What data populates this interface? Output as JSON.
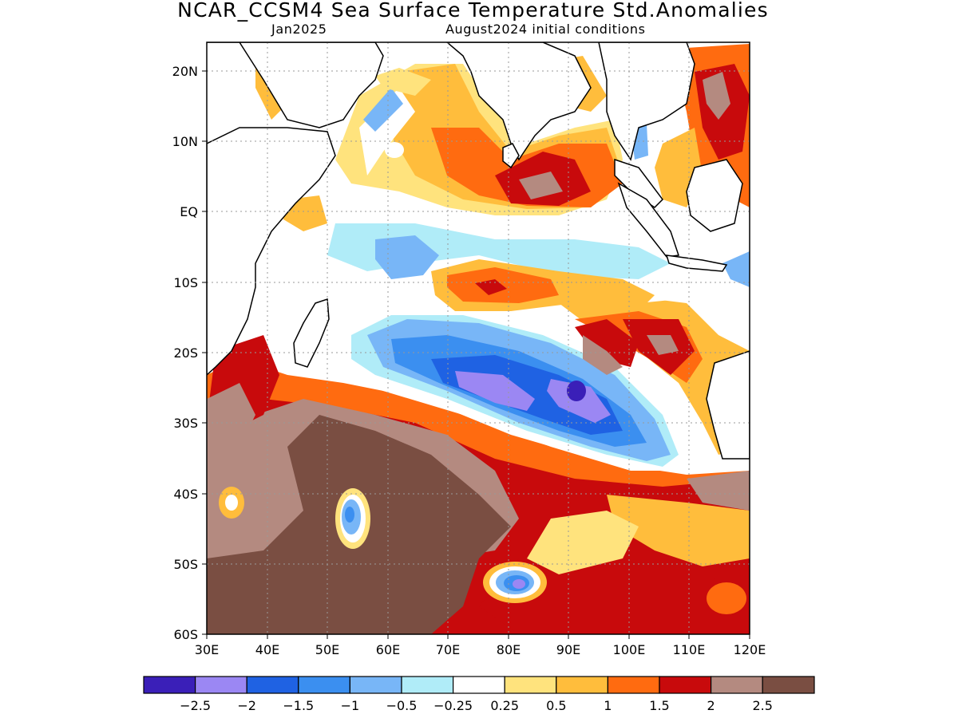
{
  "title": "NCAR_CCSM4 Sea Surface Temperature Std.Anomalies",
  "subtitle_left": "Jan2025",
  "subtitle_right": "August2024 initial conditions",
  "map": {
    "lat_labels": [
      "20N",
      "10N",
      "EQ",
      "10S",
      "20S",
      "30S",
      "40S",
      "50S",
      "60S"
    ],
    "lon_labels": [
      "30E",
      "40E",
      "50E",
      "60E",
      "70E",
      "80E",
      "90E",
      "100E",
      "110E",
      "120E"
    ],
    "lat_range": [
      -60,
      24
    ],
    "lon_range": [
      30,
      120
    ]
  },
  "colorbar": {
    "colors": [
      "#3a1fb8",
      "#9b87f3",
      "#1f62e3",
      "#3b8ff0",
      "#78b6f7",
      "#b0ecf8",
      "#ffffff",
      "#ffe37d",
      "#ffbd3c",
      "#ff6b10",
      "#c80a0c",
      "#b48a80",
      "#7a4e42"
    ],
    "labels": [
      "−2.5",
      "−2",
      "−1.5",
      "−1",
      "−0.5",
      "−0.25",
      "0.25",
      "0.5",
      "1",
      "1.5",
      "2",
      "2.5"
    ]
  }
}
